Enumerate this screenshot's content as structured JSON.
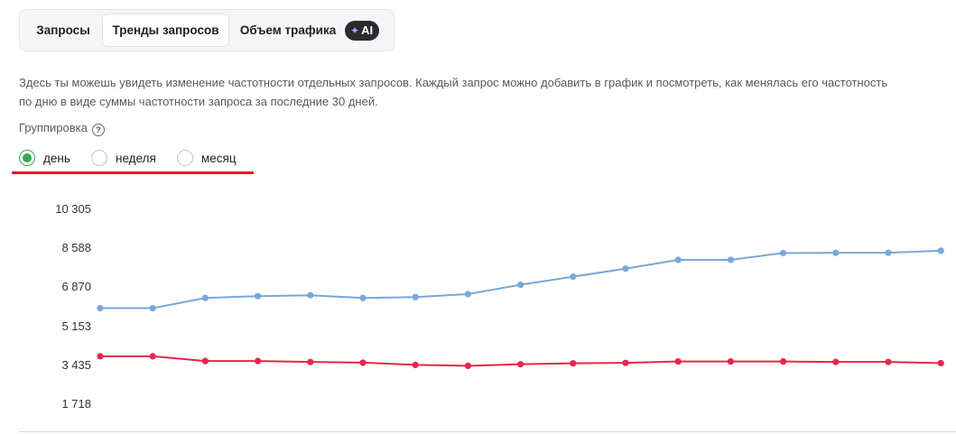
{
  "tabs": [
    {
      "label": "Запросы",
      "active": false
    },
    {
      "label": "Тренды запросов",
      "active": true
    },
    {
      "label": "Объем трафика",
      "active": false,
      "badge": "AI"
    }
  ],
  "description": {
    "line1": "Здесь ты можешь увидеть изменение частотности отдельных запросов. Каждый запрос можно добавить в график и посмотреть, как менялась его частотность",
    "line2": "по дню в виде суммы частотности запроса за последние 30 дней."
  },
  "grouping": {
    "label": "Группировка",
    "help_icon": "question-circle-icon",
    "options": [
      {
        "label": "день",
        "checked": true
      },
      {
        "label": "неделя",
        "checked": false
      },
      {
        "label": "месяц",
        "checked": false
      }
    ]
  },
  "colors": {
    "accent_green": "#35a853",
    "underline_red": "#e3122b",
    "series_blue": "#7aa7dc",
    "series_red": "#e8254c"
  },
  "chart_data": {
    "type": "line",
    "y_ticks": [
      "10 305",
      "8 588",
      "6 870",
      "5 153",
      "3 435",
      "1 718"
    ],
    "ylim": [
      1718,
      10305
    ],
    "series": [
      {
        "color": "#7aa7dc",
        "values": [
          5950,
          5950,
          6400,
          6480,
          6520,
          6400,
          6440,
          6570,
          6980,
          7340,
          7690,
          8080,
          8080,
          8380,
          8390,
          8390,
          8480
        ]
      },
      {
        "color": "#e8254c",
        "values": [
          3830,
          3830,
          3620,
          3620,
          3580,
          3550,
          3450,
          3410,
          3480,
          3520,
          3540,
          3600,
          3600,
          3600,
          3580,
          3580,
          3530
        ]
      }
    ]
  }
}
